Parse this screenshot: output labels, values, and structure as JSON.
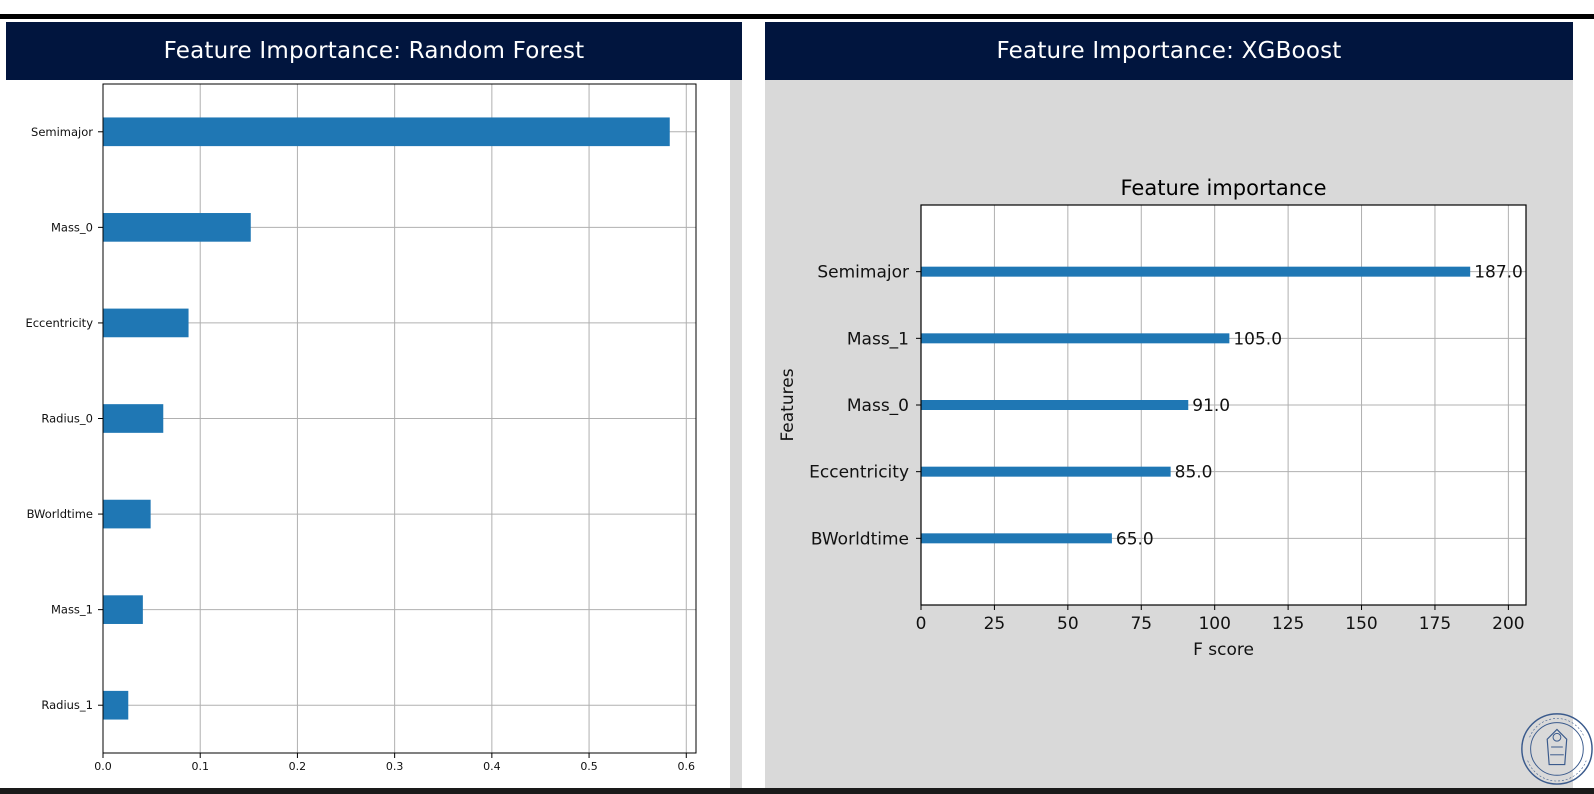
{
  "slide": {
    "left_title": "Feature Importance: Random Forest",
    "right_title": "Feature Importance: XGBoost",
    "seal_text": "UNIVERSITAS STUDII PADUANI"
  },
  "colors": {
    "header_bg": "#01153e",
    "bar": "#1f77b4",
    "panel_bg": "#d9d9d9",
    "grid": "#b0b0b0"
  },
  "chart_data": [
    {
      "type": "bar",
      "orientation": "horizontal",
      "title": "",
      "categories": [
        "Semimajor",
        "Mass_0",
        "Eccentricity",
        "Radius_0",
        "BWorldtime",
        "Mass_1",
        "Radius_1"
      ],
      "values": [
        0.583,
        0.152,
        0.088,
        0.062,
        0.049,
        0.041,
        0.026
      ],
      "xlabel": "",
      "ylabel": "",
      "xlim": [
        0,
        0.61
      ],
      "xticks": [
        0.0,
        0.1,
        0.2,
        0.3,
        0.4,
        0.5,
        0.6
      ],
      "xtick_labels": [
        "0.0",
        "0.1",
        "0.2",
        "0.3",
        "0.4",
        "0.5",
        "0.6"
      ],
      "grid": true
    },
    {
      "type": "bar",
      "orientation": "horizontal",
      "title": "Feature importance",
      "categories": [
        "Semimajor",
        "Mass_1",
        "Mass_0",
        "Eccentricity",
        "BWorldtime"
      ],
      "values": [
        187.0,
        105.0,
        91.0,
        85.0,
        65.0
      ],
      "data_labels": [
        "187.0",
        "105.0",
        "91.0",
        "85.0",
        "65.0"
      ],
      "xlabel": "F score",
      "ylabel": "Features",
      "xlim": [
        0,
        206
      ],
      "xticks": [
        0,
        25,
        50,
        75,
        100,
        125,
        150,
        175,
        200
      ],
      "xtick_labels": [
        "0",
        "25",
        "50",
        "75",
        "100",
        "125",
        "150",
        "175",
        "200"
      ],
      "grid": true
    }
  ]
}
